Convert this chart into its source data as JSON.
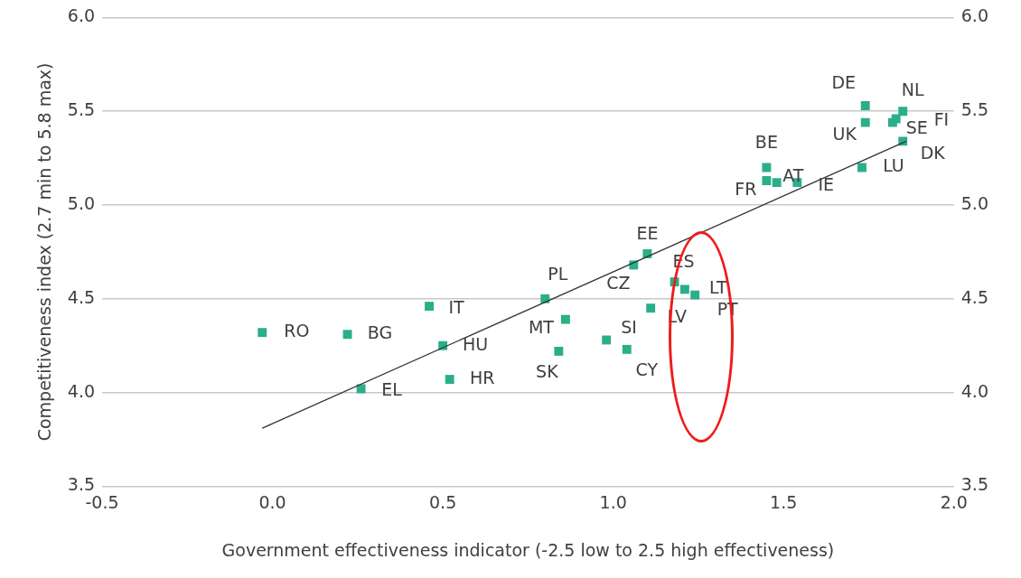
{
  "chart_data": {
    "type": "scatter",
    "xlabel": "Government effectiveness indicator (-2.5 low to 2.5 high effectiveness)",
    "ylabel": "Competitiveness index (2.7 min to 5.8 max)",
    "xlim": [
      -0.5,
      2.0
    ],
    "xticks": [
      {
        "value": -0.5,
        "label": "-0.5"
      },
      {
        "value": 0,
        "label": "0.0"
      },
      {
        "value": 0.5,
        "label": "0.5"
      },
      {
        "value": 1,
        "label": "1.0"
      },
      {
        "value": 1.5,
        "label": "1.5"
      },
      {
        "value": 2,
        "label": "2.0"
      }
    ],
    "ylim": [
      3.5,
      6.0
    ],
    "yticks": [
      {
        "value": 3.5,
        "label": "3.5"
      },
      {
        "value": 4,
        "label": "4.0"
      },
      {
        "value": 4.5,
        "label": "4.5"
      },
      {
        "value": 5,
        "label": "5.0"
      },
      {
        "value": 5.5,
        "label": "5.5"
      },
      {
        "value": 6,
        "label": "6.0"
      }
    ],
    "y2lim": [
      3.5,
      6.0
    ],
    "y2ticks": [
      {
        "value": 3.5,
        "label": "3.5"
      },
      {
        "value": 4,
        "label": "4.0"
      },
      {
        "value": 4.5,
        "label": "4.5"
      },
      {
        "value": 5,
        "label": "5.0"
      },
      {
        "value": 5.5,
        "label": "5.5"
      },
      {
        "value": 6,
        "label": "6.0"
      }
    ],
    "grid": "y",
    "legend": false,
    "marker": "square",
    "series": [
      {
        "color": "#2bae8a",
        "x": [
          -0.03,
          0.22,
          0.46,
          0.5,
          0.52,
          0.26,
          0.8,
          0.86,
          0.84,
          0.98,
          1.04,
          1.06,
          1.1,
          1.11,
          1.18,
          1.21,
          1.24,
          1.45,
          1.45,
          1.48,
          1.54,
          1.73,
          1.74,
          1.74,
          1.85,
          1.82,
          1.83,
          1.85
        ],
        "values": [
          4.32,
          4.31,
          4.46,
          4.25,
          4.07,
          4.02,
          4.5,
          4.39,
          4.22,
          4.28,
          4.23,
          4.68,
          4.74,
          4.45,
          4.59,
          4.55,
          4.52,
          5.2,
          5.13,
          5.12,
          5.12,
          5.2,
          5.53,
          5.44,
          5.5,
          5.44,
          5.46,
          5.34
        ]
      },
      {
        "type": "line",
        "color": "#333333",
        "marker": "none",
        "x": [
          -0.03,
          1.86
        ],
        "values": [
          3.81,
          5.34
        ]
      }
    ],
    "annotations": [
      {
        "text": "RO",
        "x": -0.03,
        "y": 4.32
      },
      {
        "text": "BG",
        "x": 0.22,
        "y": 4.31
      },
      {
        "text": "IT",
        "x": 0.46,
        "y": 4.46
      },
      {
        "text": "HU",
        "x": 0.5,
        "y": 4.25
      },
      {
        "text": "HR",
        "x": 0.52,
        "y": 4.07
      },
      {
        "text": "EL",
        "x": 0.26,
        "y": 4.02
      },
      {
        "text": "PL",
        "x": 0.8,
        "y": 4.5
      },
      {
        "text": "MT",
        "x": 0.86,
        "y": 4.39
      },
      {
        "text": "SK",
        "x": 0.84,
        "y": 4.22
      },
      {
        "text": "SI",
        "x": 0.98,
        "y": 4.28
      },
      {
        "text": "CY",
        "x": 1.04,
        "y": 4.23
      },
      {
        "text": "CZ",
        "x": 1.06,
        "y": 4.68
      },
      {
        "text": "EE",
        "x": 1.1,
        "y": 4.74
      },
      {
        "text": "LV",
        "x": 1.11,
        "y": 4.45
      },
      {
        "text": "ES",
        "x": 1.18,
        "y": 4.59
      },
      {
        "text": "LT",
        "x": 1.21,
        "y": 4.55
      },
      {
        "text": "PT",
        "x": 1.24,
        "y": 4.52
      },
      {
        "text": "BE",
        "x": 1.45,
        "y": 5.2
      },
      {
        "text": "FR",
        "x": 1.45,
        "y": 5.13
      },
      {
        "text": "AT",
        "x": 1.48,
        "y": 5.12
      },
      {
        "text": "IE",
        "x": 1.54,
        "y": 5.12
      },
      {
        "text": "LU",
        "x": 1.73,
        "y": 5.2
      },
      {
        "text": "DE",
        "x": 1.74,
        "y": 5.53
      },
      {
        "text": "UK",
        "x": 1.74,
        "y": 5.44
      },
      {
        "text": "NL",
        "x": 1.85,
        "y": 5.5
      },
      {
        "text": "FI",
        "x": 1.82,
        "y": 5.44
      },
      {
        "text": "SE",
        "x": 1.83,
        "y": 5.46
      },
      {
        "text": "DK",
        "x": 1.85,
        "y": 5.34
      }
    ]
  }
}
